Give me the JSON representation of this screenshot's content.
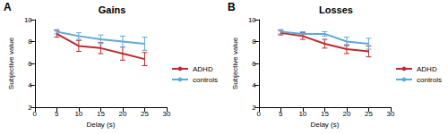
{
  "chart_data": [
    {
      "type": "line",
      "title": "Gains",
      "annotations": [
        "A"
      ],
      "x_label": "Delay (s)",
      "y_label": "Subjective value",
      "x": [
        5,
        10,
        15,
        20,
        25
      ],
      "series": [
        {
          "name": "ADHD",
          "color": "#c0282d",
          "values": [
            8.7,
            7.6,
            7.4,
            6.9,
            6.4
          ],
          "errors": [
            0.3,
            0.5,
            0.5,
            0.6,
            0.6
          ]
        },
        {
          "name": "controls",
          "color": "#5fa8d8",
          "values": [
            8.9,
            8.5,
            8.2,
            8.0,
            7.8
          ],
          "errors": [
            0.2,
            0.3,
            0.4,
            0.5,
            0.6
          ]
        }
      ],
      "xlim": [
        0,
        30
      ],
      "xticks": [
        0,
        5,
        10,
        15,
        20,
        25,
        30
      ],
      "ylim": [
        2,
        10
      ],
      "yticks": [
        2,
        4,
        6,
        8,
        10
      ],
      "grid": false,
      "legend": "right"
    },
    {
      "type": "line",
      "title": "Losses",
      "annotations": [
        "B"
      ],
      "x_label": "Delay (s)",
      "y_label": "Subjective value",
      "x": [
        5,
        10,
        15,
        20,
        25
      ],
      "series": [
        {
          "name": "ADHD",
          "color": "#c0282d",
          "values": [
            8.8,
            8.5,
            7.8,
            7.3,
            7.1
          ],
          "errors": [
            0.2,
            0.3,
            0.4,
            0.4,
            0.5
          ]
        },
        {
          "name": "controls",
          "color": "#5fa8d8",
          "values": [
            8.9,
            8.7,
            8.7,
            8.0,
            7.8
          ],
          "errors": [
            0.2,
            0.2,
            0.2,
            0.4,
            0.5
          ]
        }
      ],
      "xlim": [
        0,
        30
      ],
      "xticks": [
        0,
        5,
        10,
        15,
        20,
        25,
        30
      ],
      "ylim": [
        2,
        10
      ],
      "yticks": [
        2,
        4,
        6,
        8,
        10
      ],
      "grid": false,
      "legend": "right"
    }
  ]
}
